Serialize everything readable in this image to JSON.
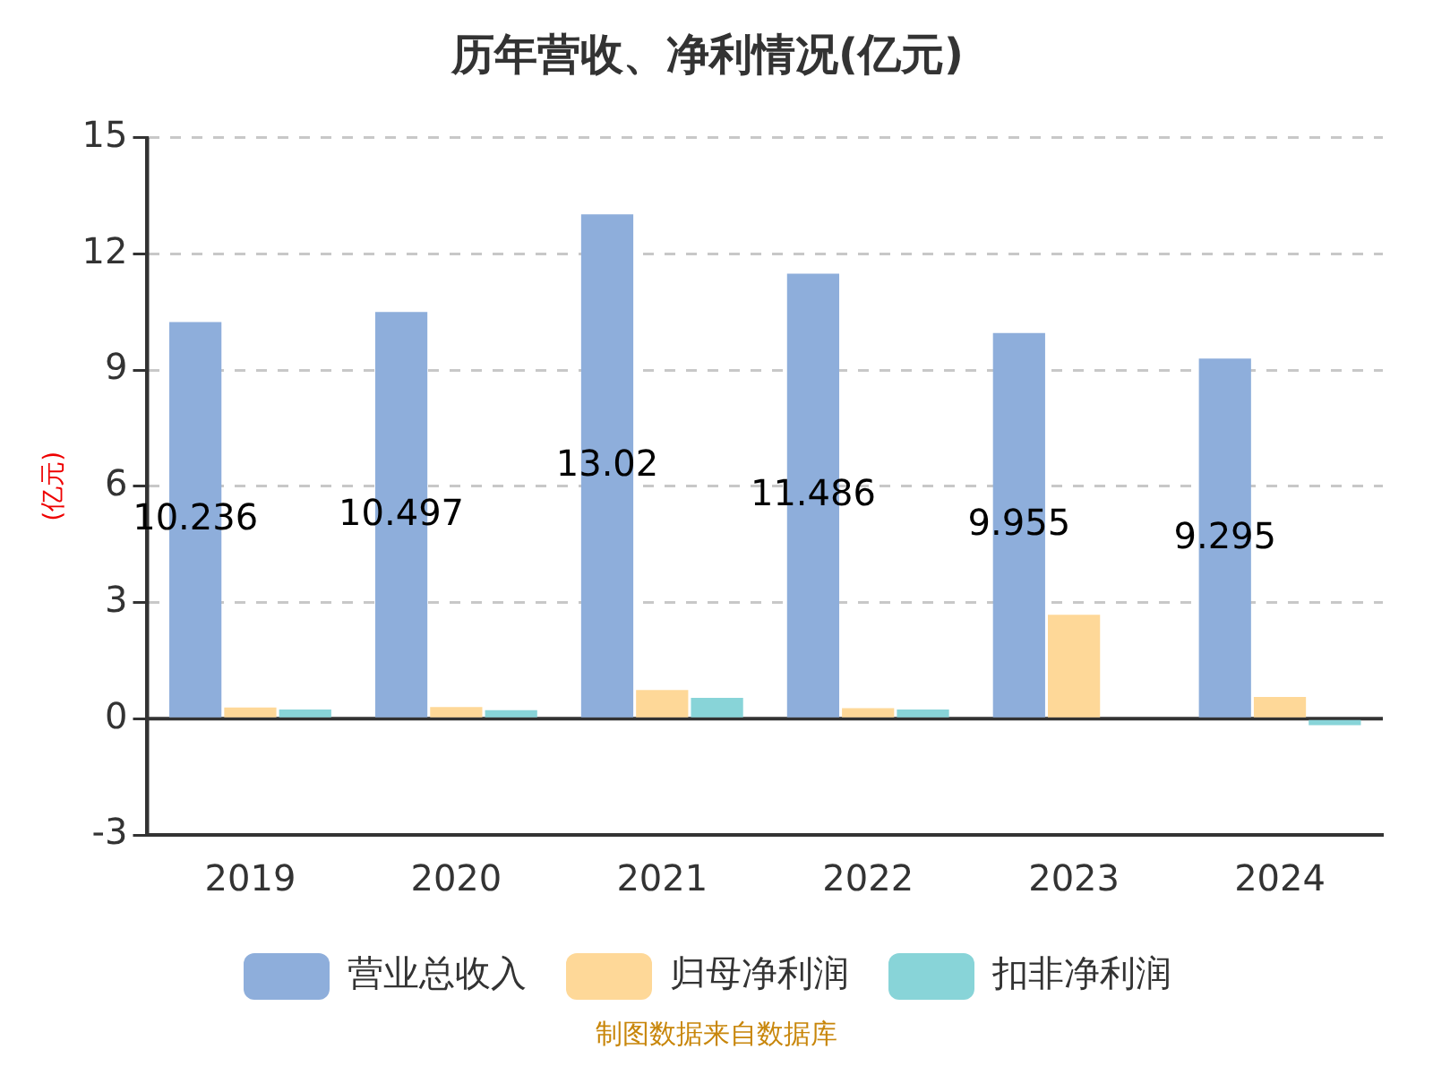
{
  "chart_data": {
    "type": "bar",
    "title": "历年营收、净利情况(亿元)",
    "ylabel": "(亿元)",
    "categories": [
      "2019",
      "2020",
      "2021",
      "2022",
      "2023",
      "2024"
    ],
    "series": [
      {
        "name": "营业总收入",
        "color": "#8eaedb",
        "values": [
          10.236,
          10.497,
          13.02,
          11.486,
          9.955,
          9.295
        ],
        "value_labels": [
          "10.236",
          "10.497",
          "13.02",
          "11.486",
          "9.955",
          "9.295"
        ]
      },
      {
        "name": "归母净利润",
        "color": "#fed898",
        "values": [
          0.29,
          0.3,
          0.74,
          0.27,
          2.68,
          0.56
        ]
      },
      {
        "name": "扣非净利润",
        "color": "#88d4d8",
        "values": [
          0.24,
          0.22,
          0.54,
          0.24,
          null,
          -0.17
        ]
      }
    ],
    "ylim": [
      -3,
      15
    ],
    "yticks": [
      -3,
      0,
      3,
      6,
      9,
      12,
      15
    ],
    "grid": "y",
    "legend": "bottom",
    "annotations": [
      "制图数据来自数据库"
    ]
  }
}
